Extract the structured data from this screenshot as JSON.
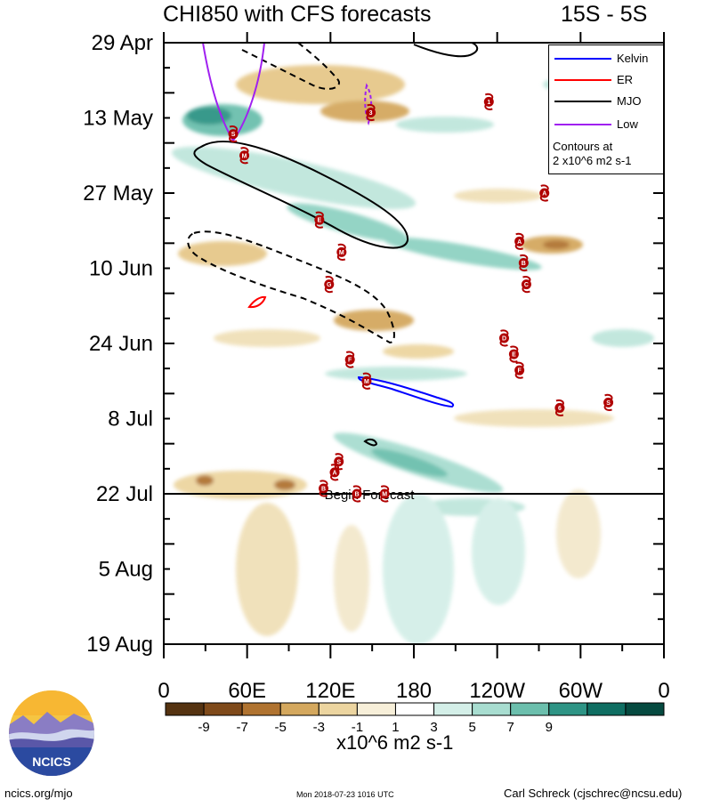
{
  "header": {
    "title": "CHI850 with CFS forecasts",
    "region": "15S - 5S"
  },
  "legend": {
    "items": [
      {
        "label": "Kelvin",
        "color": "#0000ff"
      },
      {
        "label": "ER",
        "color": "#ff0000"
      },
      {
        "label": "MJO",
        "color": "#000000"
      },
      {
        "label": "Low",
        "color": "#a020f0"
      }
    ],
    "note_line1": "Contours at",
    "note_line2": "2 x10^6 m2 s-1"
  },
  "colorbar": {
    "unit": "x10^6 m2 s-1",
    "tick_labels": [
      "-9",
      "-7",
      "-5",
      "-3",
      "-1",
      "1",
      "3",
      "5",
      "7",
      "9"
    ],
    "colors": [
      "#553311",
      "#7f4a1a",
      "#b07330",
      "#d4a85e",
      "#ecd5a0",
      "#f7efd9",
      "#ffffff",
      "#d4efe8",
      "#a8ddd0",
      "#6cbfad",
      "#2e9485",
      "#0f6e62",
      "#064a40"
    ]
  },
  "footer": {
    "left": "ncics.org/mjo",
    "middle": "Mon 2018-07-23 1016 UTC",
    "right": "Carl Schreck (cjschrec@ncsu.edu)",
    "logo_text": "NCICS"
  },
  "chart_data": {
    "type": "heatmap",
    "title": "CHI850 with CFS forecasts",
    "subtitle": "15S - 5S",
    "xlabel": "",
    "ylabel": "",
    "x_tick_labels": [
      "0",
      "60E",
      "120E",
      "180",
      "120W",
      "60W",
      "0"
    ],
    "x_range": [
      0,
      360
    ],
    "y_tick_labels": [
      "29 Apr",
      "13 May",
      "27 May",
      "10 Jun",
      "24 Jun",
      "8 Jul",
      "22 Jul",
      "5 Aug",
      "19 Aug"
    ],
    "y_range": [
      "2018-04-29",
      "2018-08-19"
    ],
    "forecast_line": {
      "date": "2018-07-22",
      "label": "Begin Forecast"
    },
    "storms": [
      {
        "symbol": "1",
        "lon": 234,
        "date": "2018-05-10"
      },
      {
        "symbol": "S",
        "lon": 50,
        "date": "2018-05-16"
      },
      {
        "symbol": "M",
        "lon": 58,
        "date": "2018-05-20"
      },
      {
        "symbol": "3",
        "lon": 149,
        "date": "2018-05-12"
      },
      {
        "symbol": "A",
        "lon": 274,
        "date": "2018-05-27"
      },
      {
        "symbol": "E",
        "lon": 112,
        "date": "2018-06-01"
      },
      {
        "symbol": "A",
        "lon": 256,
        "date": "2018-06-05"
      },
      {
        "symbol": "M",
        "lon": 128,
        "date": "2018-06-07"
      },
      {
        "symbol": "B",
        "lon": 259,
        "date": "2018-06-09"
      },
      {
        "symbol": "G",
        "lon": 119,
        "date": "2018-06-13"
      },
      {
        "symbol": "C",
        "lon": 261,
        "date": "2018-06-13"
      },
      {
        "symbol": "D",
        "lon": 245,
        "date": "2018-06-23"
      },
      {
        "symbol": "E",
        "lon": 252,
        "date": "2018-06-26"
      },
      {
        "symbol": "F",
        "lon": 134,
        "date": "2018-06-27"
      },
      {
        "symbol": "F",
        "lon": 256,
        "date": "2018-06-29"
      },
      {
        "symbol": "M",
        "lon": 146,
        "date": "2018-07-01"
      },
      {
        "symbol": "S",
        "lon": 320,
        "date": "2018-07-05"
      },
      {
        "symbol": "6",
        "lon": 285,
        "date": "2018-07-06"
      },
      {
        "symbol": "S",
        "lon": 126,
        "date": "2018-07-16"
      },
      {
        "symbol": "A",
        "lon": 123,
        "date": "2018-07-18"
      },
      {
        "symbol": "B",
        "lon": 115,
        "date": "2018-07-21"
      },
      {
        "symbol": "B",
        "lon": 139,
        "date": "2018-07-22"
      },
      {
        "symbol": "M",
        "lon": 159,
        "date": "2018-07-22"
      }
    ]
  }
}
